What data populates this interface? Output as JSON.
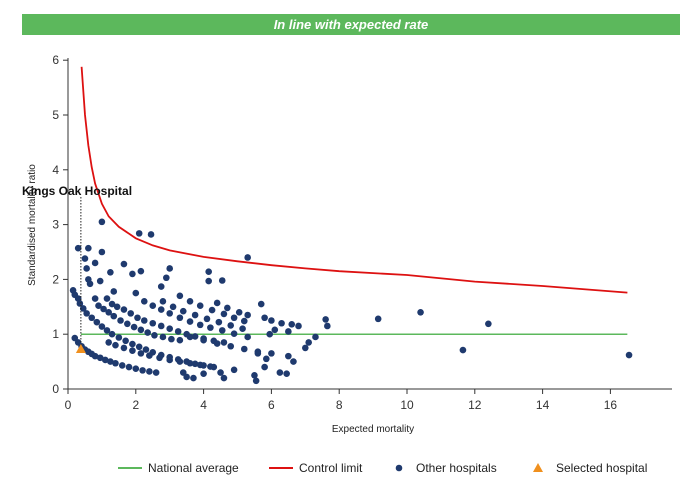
{
  "banner": {
    "text": "In line with expected rate",
    "color": "#5cb85c"
  },
  "chart_data": {
    "type": "scatter",
    "title": "",
    "xlabel": "Expected mortality",
    "ylabel": "Standardised mortality ratio",
    "xlim": [
      0,
      17
    ],
    "ylim": [
      0,
      6
    ],
    "x_ticks": [
      0,
      2,
      4,
      6,
      8,
      10,
      12,
      14,
      16
    ],
    "y_ticks": [
      0,
      1,
      2,
      3,
      4,
      5,
      6
    ],
    "x_tick_labels": [
      "0",
      "2",
      "4",
      "6",
      "8",
      "10",
      "12",
      "14",
      "16"
    ],
    "y_tick_labels": [
      "0",
      "1",
      "2",
      "3",
      "4",
      "5",
      "6"
    ],
    "grid": false,
    "legend_position": "bottom",
    "national_average": {
      "name": "National average",
      "y": 1,
      "x_range": [
        0.38,
        16.5
      ],
      "color": "#5cb85c"
    },
    "control_limit": {
      "name": "Control limit",
      "color": "#dd1111",
      "x": [
        0.4,
        0.5,
        0.6,
        0.7,
        0.8,
        1.0,
        1.2,
        1.5,
        2.0,
        2.5,
        3.0,
        4.0,
        5.0,
        6.0,
        7.0,
        8.0,
        10.0,
        12.0,
        14.0,
        16.5
      ],
      "y": [
        5.88,
        5.0,
        4.45,
        4.05,
        3.75,
        3.38,
        3.15,
        2.96,
        2.75,
        2.62,
        2.53,
        2.41,
        2.33,
        2.26,
        2.2,
        2.15,
        2.08,
        1.96,
        1.88,
        1.76
      ]
    },
    "series": [
      {
        "name": "Other hospitals",
        "color": "#1f3a6e",
        "marker": "circle",
        "points": [
          [
            0.3,
            2.57
          ],
          [
            0.5,
            2.38
          ],
          [
            0.55,
            2.2
          ],
          [
            0.6,
            2.0
          ],
          [
            0.65,
            1.92
          ],
          [
            0.6,
            2.57
          ],
          [
            0.8,
            2.3
          ],
          [
            1.0,
            2.5
          ],
          [
            1.0,
            3.05
          ],
          [
            0.95,
            1.97
          ],
          [
            1.25,
            2.13
          ],
          [
            1.35,
            1.78
          ],
          [
            1.65,
            2.28
          ],
          [
            1.9,
            2.1
          ],
          [
            2.1,
            2.84
          ],
          [
            2.15,
            2.15
          ],
          [
            2.45,
            2.82
          ],
          [
            2.75,
            1.87
          ],
          [
            2.9,
            2.03
          ],
          [
            3.0,
            2.2
          ],
          [
            4.15,
            2.14
          ],
          [
            4.15,
            1.97
          ],
          [
            4.55,
            1.98
          ],
          [
            5.3,
            2.4
          ],
          [
            0.15,
            1.8
          ],
          [
            0.2,
            1.72
          ],
          [
            0.3,
            1.65
          ],
          [
            0.35,
            1.56
          ],
          [
            0.45,
            1.47
          ],
          [
            0.55,
            1.38
          ],
          [
            0.8,
            1.65
          ],
          [
            0.9,
            1.52
          ],
          [
            1.05,
            1.46
          ],
          [
            1.2,
            1.4
          ],
          [
            1.35,
            1.33
          ],
          [
            1.55,
            1.25
          ],
          [
            1.75,
            1.19
          ],
          [
            1.95,
            1.13
          ],
          [
            2.15,
            1.08
          ],
          [
            2.35,
            1.03
          ],
          [
            2.55,
            0.98
          ],
          [
            2.8,
            0.95
          ],
          [
            3.05,
            0.91
          ],
          [
            3.3,
            0.89
          ],
          [
            1.15,
            1.65
          ],
          [
            1.3,
            1.55
          ],
          [
            1.45,
            1.5
          ],
          [
            1.65,
            1.45
          ],
          [
            1.85,
            1.38
          ],
          [
            2.05,
            1.3
          ],
          [
            2.25,
            1.25
          ],
          [
            2.5,
            1.2
          ],
          [
            2.75,
            1.15
          ],
          [
            3.0,
            1.1
          ],
          [
            3.25,
            1.05
          ],
          [
            3.5,
            1.0
          ],
          [
            3.75,
            0.96
          ],
          [
            4.0,
            0.92
          ],
          [
            4.3,
            0.88
          ],
          [
            4.6,
            0.85
          ],
          [
            2.0,
            1.75
          ],
          [
            2.25,
            1.6
          ],
          [
            2.5,
            1.52
          ],
          [
            2.75,
            1.45
          ],
          [
            3.0,
            1.38
          ],
          [
            3.3,
            1.3
          ],
          [
            3.6,
            1.23
          ],
          [
            3.9,
            1.17
          ],
          [
            4.2,
            1.12
          ],
          [
            4.55,
            1.07
          ],
          [
            4.9,
            1.01
          ],
          [
            5.3,
            0.95
          ],
          [
            0.2,
            0.93
          ],
          [
            0.3,
            0.85
          ],
          [
            0.4,
            0.78
          ],
          [
            0.5,
            0.72
          ],
          [
            0.6,
            0.68
          ],
          [
            0.7,
            0.64
          ],
          [
            0.8,
            0.6
          ],
          [
            0.95,
            0.57
          ],
          [
            1.1,
            0.53
          ],
          [
            1.25,
            0.5
          ],
          [
            1.4,
            0.47
          ],
          [
            1.6,
            0.43
          ],
          [
            1.8,
            0.4
          ],
          [
            2.0,
            0.37
          ],
          [
            2.2,
            0.34
          ],
          [
            2.4,
            0.32
          ],
          [
            2.6,
            0.3
          ],
          [
            0.7,
            1.3
          ],
          [
            0.85,
            1.22
          ],
          [
            1.0,
            1.14
          ],
          [
            1.15,
            1.07
          ],
          [
            1.3,
            1.0
          ],
          [
            1.5,
            0.94
          ],
          [
            1.7,
            0.88
          ],
          [
            1.9,
            0.82
          ],
          [
            2.1,
            0.77
          ],
          [
            2.3,
            0.72
          ],
          [
            2.5,
            0.67
          ],
          [
            2.75,
            0.62
          ],
          [
            3.0,
            0.58
          ],
          [
            3.25,
            0.54
          ],
          [
            3.5,
            0.5
          ],
          [
            3.75,
            0.46
          ],
          [
            4.0,
            0.43
          ],
          [
            4.3,
            0.4
          ],
          [
            1.2,
            0.85
          ],
          [
            1.4,
            0.8
          ],
          [
            1.65,
            0.75
          ],
          [
            1.9,
            0.7
          ],
          [
            2.15,
            0.65
          ],
          [
            2.4,
            0.61
          ],
          [
            2.7,
            0.57
          ],
          [
            3.0,
            0.53
          ],
          [
            3.3,
            0.5
          ],
          [
            3.6,
            0.47
          ],
          [
            3.9,
            0.44
          ],
          [
            4.2,
            0.41
          ],
          [
            2.8,
            1.6
          ],
          [
            3.1,
            1.5
          ],
          [
            3.4,
            1.42
          ],
          [
            3.75,
            1.35
          ],
          [
            4.1,
            1.28
          ],
          [
            4.45,
            1.22
          ],
          [
            4.8,
            1.16
          ],
          [
            5.15,
            1.1
          ],
          [
            3.3,
            1.7
          ],
          [
            3.6,
            1.6
          ],
          [
            3.9,
            1.52
          ],
          [
            4.25,
            1.44
          ],
          [
            4.6,
            1.37
          ],
          [
            4.9,
            1.3
          ],
          [
            5.2,
            1.24
          ],
          [
            3.6,
            0.95
          ],
          [
            4.0,
            0.89
          ],
          [
            4.4,
            0.83
          ],
          [
            4.8,
            0.78
          ],
          [
            5.2,
            0.73
          ],
          [
            5.6,
            0.68
          ],
          [
            6.0,
            0.65
          ],
          [
            6.5,
            0.6
          ],
          [
            3.4,
            0.3
          ],
          [
            3.5,
            0.22
          ],
          [
            3.7,
            0.2
          ],
          [
            4.0,
            0.28
          ],
          [
            4.5,
            0.3
          ],
          [
            4.6,
            0.2
          ],
          [
            4.9,
            0.35
          ],
          [
            5.5,
            0.25
          ],
          [
            5.55,
            0.15
          ],
          [
            5.8,
            0.4
          ],
          [
            6.25,
            0.3
          ],
          [
            6.45,
            0.28
          ],
          [
            6.65,
            0.5
          ],
          [
            4.4,
            1.57
          ],
          [
            4.7,
            1.48
          ],
          [
            5.05,
            1.4
          ],
          [
            5.3,
            1.35
          ],
          [
            5.7,
            1.55
          ],
          [
            5.8,
            1.3
          ],
          [
            6.0,
            1.25
          ],
          [
            6.3,
            1.2
          ],
          [
            6.6,
            1.18
          ],
          [
            6.8,
            1.15
          ],
          [
            6.1,
            1.08
          ],
          [
            6.5,
            1.05
          ],
          [
            7.3,
            0.95
          ],
          [
            7.1,
            0.85
          ],
          [
            7.0,
            0.75
          ],
          [
            5.6,
            0.65
          ],
          [
            5.85,
            0.55
          ],
          [
            5.95,
            1.0
          ],
          [
            7.6,
            1.27
          ],
          [
            7.65,
            1.15
          ],
          [
            9.15,
            1.28
          ],
          [
            10.4,
            1.4
          ],
          [
            11.65,
            0.71
          ],
          [
            12.4,
            1.19
          ],
          [
            16.55,
            0.62
          ]
        ]
      },
      {
        "name": "Selected hospital",
        "color": "#f0901e",
        "marker": "triangle",
        "points": [
          [
            0.38,
            0.73
          ]
        ],
        "label": "Kings Oak Hospital"
      }
    ]
  }
}
